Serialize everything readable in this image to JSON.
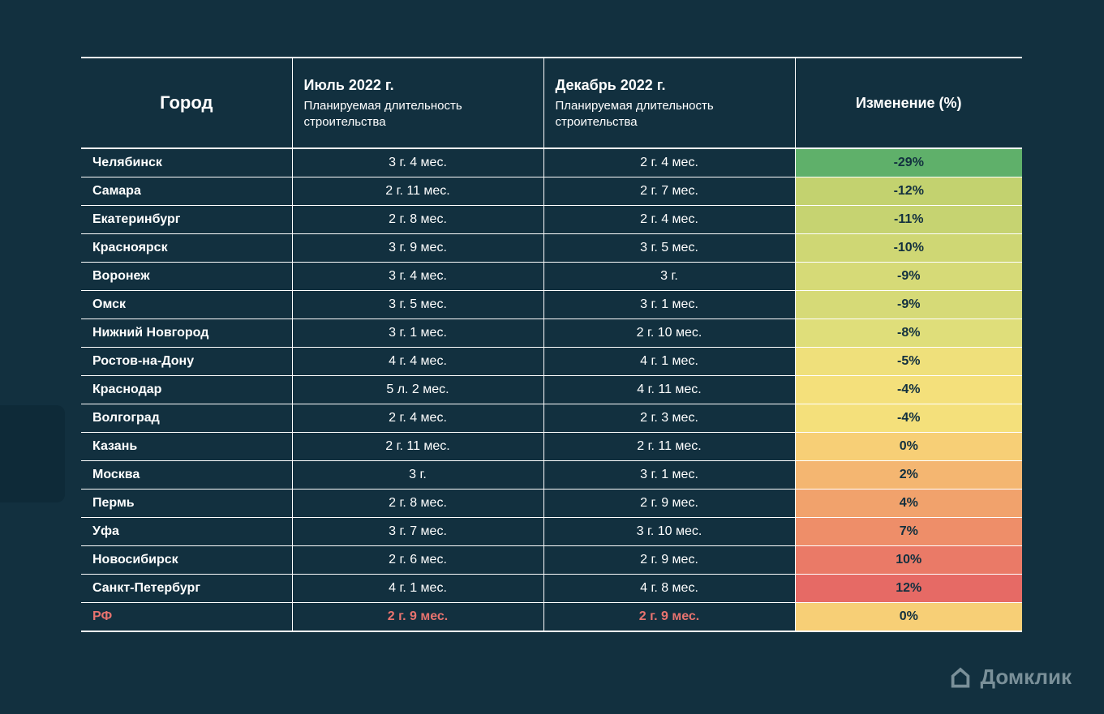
{
  "style": {
    "background_color": "#12303f",
    "text_color": "#ffffff",
    "border_color": "#ffffff",
    "total_row_color": "#e8736f",
    "logo_color": "#7a9099",
    "header_fontsize": 18,
    "city_header_fontsize": 22,
    "body_fontsize": 16,
    "font_family": "Segoe UI"
  },
  "columns": {
    "city": "Город",
    "july_title": "Июль 2022 г.",
    "july_sub": "Планируемая длительность строительства",
    "dec_title": "Декабрь 2022 г.",
    "dec_sub": "Планируемая длительность строительства",
    "change": "Изменение (%)"
  },
  "rows": [
    {
      "city": "Челябинск",
      "july": "3 г. 4 мес.",
      "dec": "2 г. 4 мес.",
      "change": "-29%",
      "change_bg": "#5fb06a"
    },
    {
      "city": "Самара",
      "july": "2 г. 11 мес.",
      "dec": "2 г. 7 мес.",
      "change": "-12%",
      "change_bg": "#c3d26f"
    },
    {
      "city": "Екатеринбург",
      "july": "2 г. 8 мес.",
      "dec": "2 г. 4 мес.",
      "change": "-11%",
      "change_bg": "#c6d371"
    },
    {
      "city": "Красноярск",
      "july": "3 г. 9 мес.",
      "dec": "3 г. 5 мес.",
      "change": "-10%",
      "change_bg": "#cfd774"
    },
    {
      "city": "Воронеж",
      "july": "3 г. 4 мес.",
      "dec": "3 г.",
      "change": "-9%",
      "change_bg": "#d6da77"
    },
    {
      "city": "Омск",
      "july": "3 г. 5 мес.",
      "dec": "3 г. 1 мес.",
      "change": "-9%",
      "change_bg": "#d6da77"
    },
    {
      "city": "Нижний Новгород",
      "july": "3 г. 1 мес.",
      "dec": "2 г. 10 мес.",
      "change": "-8%",
      "change_bg": "#dfde7a"
    },
    {
      "city": "Ростов-на-Дону",
      "july": "4 г. 4 мес.",
      "dec": "4 г. 1 мес.",
      "change": "-5%",
      "change_bg": "#efe07b"
    },
    {
      "city": "Краснодар",
      "july": "5 л. 2 мес.",
      "dec": "4 г. 11 мес.",
      "change": "-4%",
      "change_bg": "#f4e07b"
    },
    {
      "city": "Волгоград",
      "july": "2 г. 4 мес.",
      "dec": "2 г. 3 мес.",
      "change": "-4%",
      "change_bg": "#f4e07b"
    },
    {
      "city": "Казань",
      "july": "2 г. 11 мес.",
      "dec": "2 г. 11 мес.",
      "change": "0%",
      "change_bg": "#f7cf76"
    },
    {
      "city": "Москва",
      "july": "3 г.",
      "dec": "3 г. 1 мес.",
      "change": "2%",
      "change_bg": "#f4b671"
    },
    {
      "city": "Пермь",
      "july": "2 г. 8 мес.",
      "dec": "2 г. 9 мес.",
      "change": "4%",
      "change_bg": "#f1a26c"
    },
    {
      "city": "Уфа",
      "july": "3 г. 7 мес.",
      "dec": "3 г. 10 мес.",
      "change": "7%",
      "change_bg": "#ee8e69"
    },
    {
      "city": "Новосибирск",
      "july": "2 г. 6 мес.",
      "dec": "2 г. 9 мес.",
      "change": "10%",
      "change_bg": "#ea7a67"
    },
    {
      "city": "Санкт-Петербург",
      "july": "4 г. 1 мес.",
      "dec": "4 г. 8 мес.",
      "change": "12%",
      "change_bg": "#e66a65"
    }
  ],
  "total": {
    "city": "РФ",
    "july": "2 г. 9 мес.",
    "dec": "2 г. 9 мес.",
    "change": "0%",
    "change_bg": "#f7cf76"
  },
  "logo": {
    "text": "Домклик"
  }
}
